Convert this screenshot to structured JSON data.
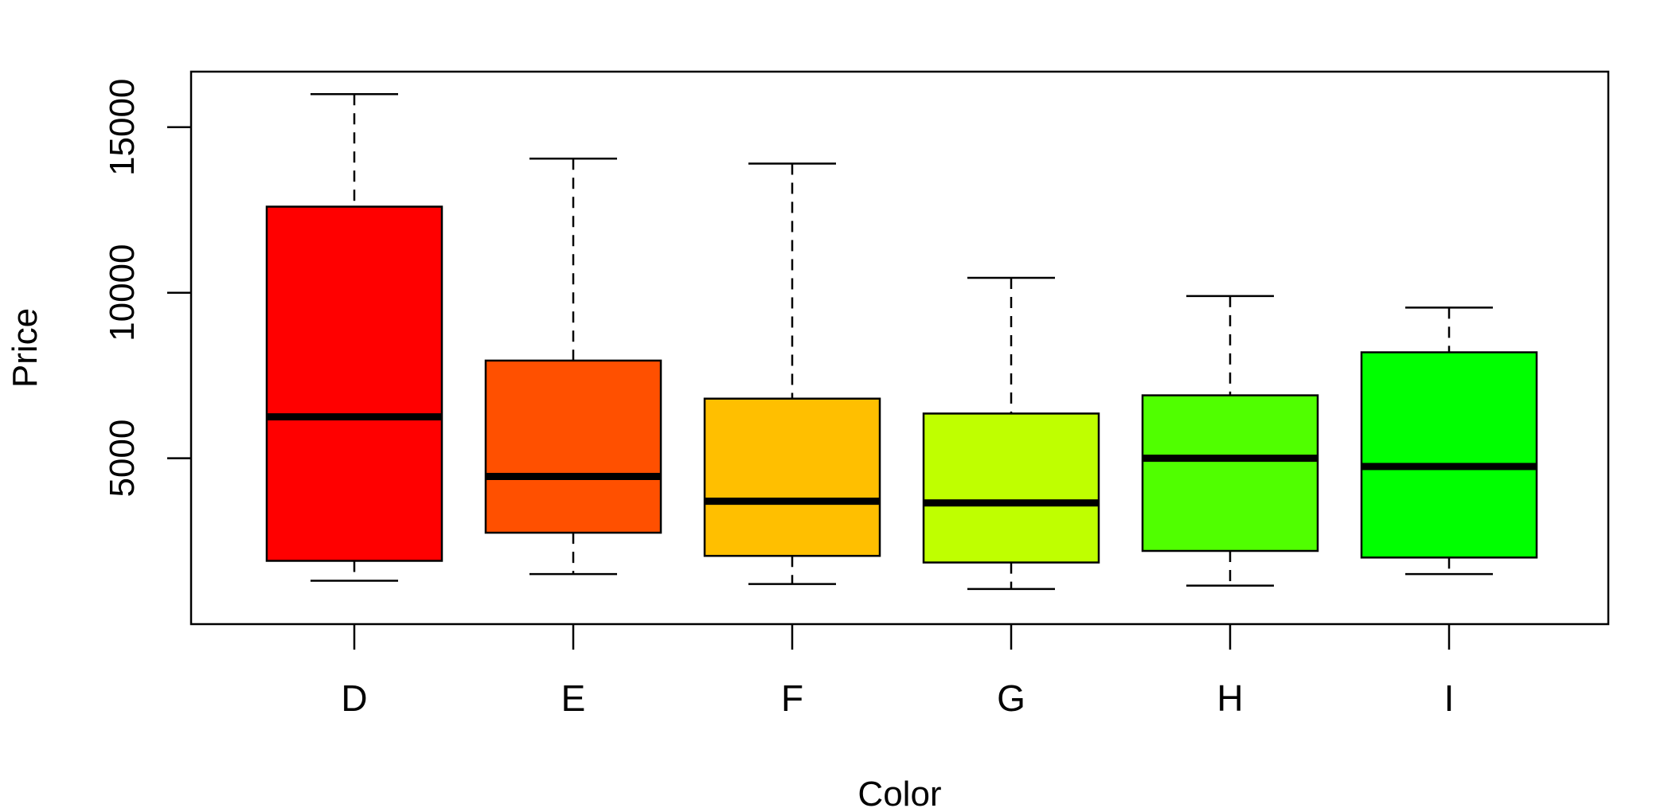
{
  "chart_data": {
    "type": "boxplot",
    "title": "",
    "xlabel": "Color",
    "ylabel": "Price",
    "categories": [
      "D",
      "E",
      "F",
      "G",
      "H",
      "I"
    ],
    "boxes": [
      {
        "category": "D",
        "lower_whisker": 1300,
        "q1": 1900,
        "median": 6250,
        "q3": 12600,
        "upper_whisker": 16000,
        "fill": "#FF0000"
      },
      {
        "category": "E",
        "lower_whisker": 1500,
        "q1": 2750,
        "median": 4450,
        "q3": 7950,
        "upper_whisker": 14050,
        "fill": "#FF5000"
      },
      {
        "category": "F",
        "lower_whisker": 1200,
        "q1": 2050,
        "median": 3700,
        "q3": 6800,
        "upper_whisker": 13900,
        "fill": "#FFBF00"
      },
      {
        "category": "G",
        "lower_whisker": 1050,
        "q1": 1850,
        "median": 3650,
        "q3": 6350,
        "upper_whisker": 10450,
        "fill": "#BFFF00"
      },
      {
        "category": "H",
        "lower_whisker": 1150,
        "q1": 2200,
        "median": 5000,
        "q3": 6900,
        "upper_whisker": 9900,
        "fill": "#50FF00"
      },
      {
        "category": "I",
        "lower_whisker": 1500,
        "q1": 2000,
        "median": 4750,
        "q3": 8200,
        "upper_whisker": 9550,
        "fill": "#00FF00"
      }
    ],
    "yticks": [
      5000,
      10000,
      15000
    ],
    "ytick_labels": [
      "5000",
      "10000",
      "15000"
    ],
    "ylim": [
      0,
      16600
    ],
    "grid": false,
    "legend": "none"
  }
}
